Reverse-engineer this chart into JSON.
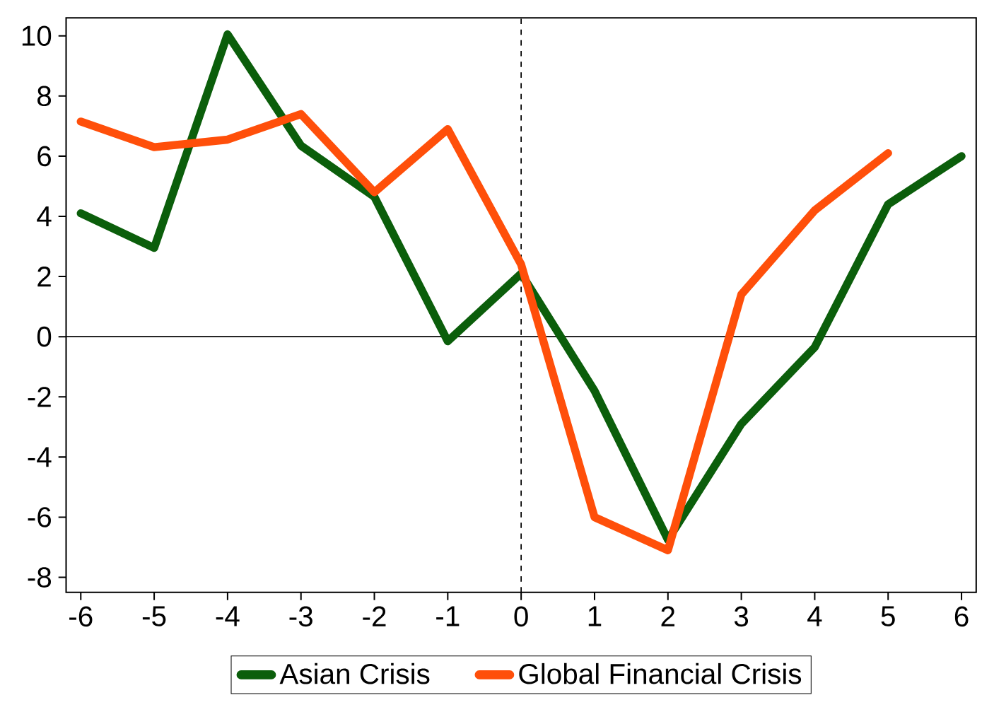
{
  "chart_data": {
    "type": "line",
    "x": [
      -6,
      -5,
      -4,
      -3,
      -2,
      -1,
      0,
      1,
      2,
      3,
      4,
      5,
      6
    ],
    "series": [
      {
        "name": "Asian Crisis",
        "color": "#0b5e0b",
        "values": [
          4.1,
          2.95,
          10.05,
          6.35,
          4.65,
          -0.15,
          2.1,
          -1.8,
          -6.75,
          -2.9,
          -0.35,
          4.4,
          6.0
        ]
      },
      {
        "name": "Global Financial Crisis",
        "color": "#ff4f0a",
        "values": [
          7.15,
          6.3,
          6.55,
          7.4,
          4.8,
          6.9,
          2.4,
          -6.0,
          -7.1,
          1.4,
          4.2,
          6.1,
          null
        ]
      }
    ],
    "xlim": [
      -6.2,
      6.2
    ],
    "ylim": [
      -8.5,
      10.6
    ],
    "xticks": [
      -6,
      -5,
      -4,
      -3,
      -2,
      -1,
      0,
      1,
      2,
      3,
      4,
      5,
      6
    ],
    "yticks": [
      -8,
      -6,
      -4,
      -2,
      0,
      2,
      4,
      6,
      8,
      10
    ],
    "ref_lines": [
      {
        "axis": "x",
        "value": 0,
        "line_style": "dashed"
      },
      {
        "axis": "y",
        "value": 0,
        "line_style": "solid"
      }
    ],
    "legend": "bottom",
    "grid": false,
    "marker": "none",
    "line_style": "solid"
  }
}
